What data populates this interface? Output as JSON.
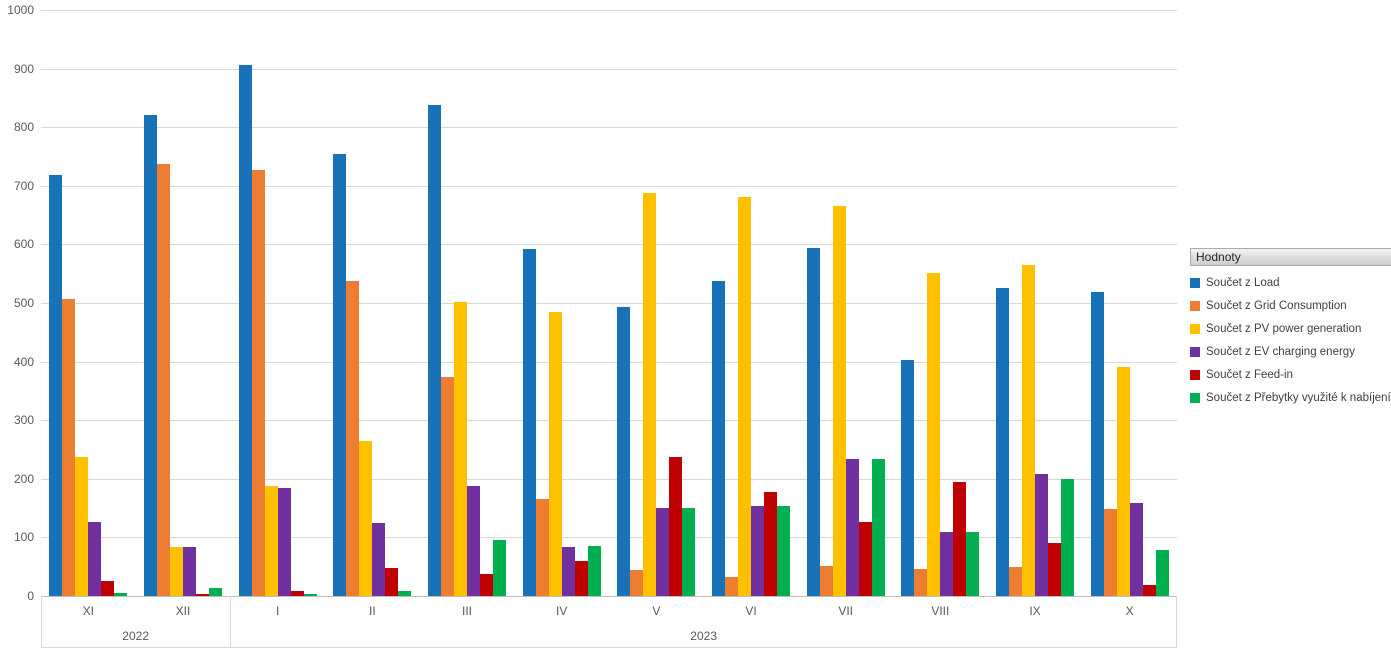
{
  "legend": {
    "title": "Hodnoty",
    "items": [
      {
        "label": "Součet z Load",
        "color": "#1772b8"
      },
      {
        "label": "Součet z Grid Consumption",
        "color": "#ed7d31"
      },
      {
        "label": "Součet z PV power generation",
        "color": "#ffc000"
      },
      {
        "label": "Součet z EV charging energy",
        "color": "#7030a0"
      },
      {
        "label": "Součet z Feed-in",
        "color": "#c00000"
      },
      {
        "label": "Součet z Přebytky využité k nabíjení",
        "color": "#00b050"
      }
    ]
  },
  "chart_data": {
    "type": "bar",
    "title": "",
    "xlabel": "",
    "ylabel": "",
    "ylim": [
      0,
      1000
    ],
    "yticks": [
      0,
      100,
      200,
      300,
      400,
      500,
      600,
      700,
      800,
      900,
      1000
    ],
    "grid": true,
    "legend_position": "right",
    "categories": [
      "XI",
      "XII",
      "I",
      "II",
      "III",
      "IV",
      "V",
      "VI",
      "VII",
      "VIII",
      "IX",
      "X"
    ],
    "category_groups": [
      {
        "label": "2022",
        "span": 2
      },
      {
        "label": "2023",
        "span": 10
      }
    ],
    "series": [
      {
        "name": "Součet z Load",
        "color": "#1772b8",
        "values": [
          718,
          820,
          907,
          755,
          838,
          592,
          493,
          537,
          594,
          402,
          526,
          518
        ]
      },
      {
        "name": "Součet z Grid Consumption",
        "color": "#ed7d31",
        "values": [
          507,
          737,
          727,
          537,
          373,
          165,
          44,
          33,
          51,
          46,
          50,
          148
        ]
      },
      {
        "name": "Součet z PV power generation",
        "color": "#ffc000",
        "values": [
          237,
          83,
          188,
          265,
          502,
          485,
          687,
          681,
          666,
          551,
          565,
          391
        ]
      },
      {
        "name": "Součet z EV charging energy",
        "color": "#7030a0",
        "values": [
          126,
          83,
          184,
          124,
          187,
          84,
          150,
          153,
          233,
          110,
          209,
          158
        ]
      },
      {
        "name": "Součet z Feed-in",
        "color": "#c00000",
        "values": [
          26,
          3,
          8,
          48,
          38,
          60,
          238,
          177,
          126,
          194,
          90,
          19
        ]
      },
      {
        "name": "Součet z Přebytky využité k nabíjení",
        "color": "#00b050",
        "values": [
          5,
          13,
          3,
          8,
          95,
          86,
          150,
          153,
          233,
          110,
          199,
          79
        ]
      }
    ]
  }
}
